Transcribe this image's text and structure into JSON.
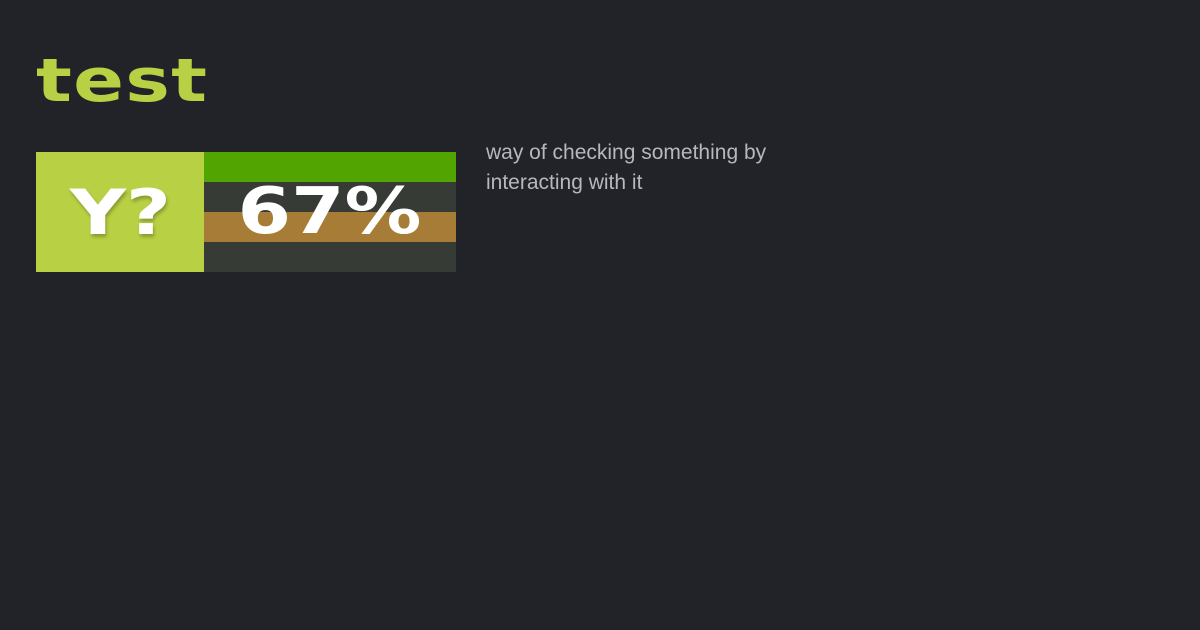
{
  "title": "test",
  "badge": {
    "label": "Y?"
  },
  "score": {
    "percent_label": "67%",
    "value": 67
  },
  "stripes": [
    "#52a500",
    "#373b36",
    "#a67c36",
    "#373b36"
  ],
  "colors": {
    "background": "#212328",
    "accent": "#b8d043"
  },
  "description": "way of checking something by interacting with it"
}
